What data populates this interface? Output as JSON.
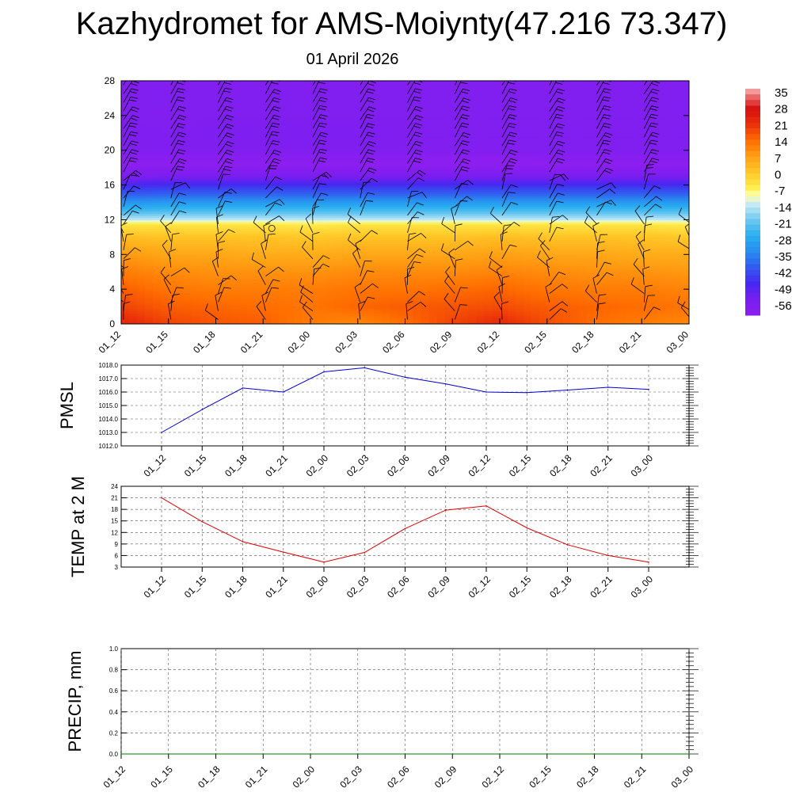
{
  "header": {
    "title": "Kazhydromet for AMS-Moiynty(47.216 73.347)",
    "subtitle": "01 April 2026"
  },
  "chart_data": [
    {
      "type": "heatmap",
      "title": "",
      "xlabel": "",
      "ylabel": "",
      "x_ticks": [
        "01_12",
        "01_15",
        "01_18",
        "01_21",
        "02_00",
        "02_03",
        "02_06",
        "02_09",
        "02_12",
        "02_15",
        "02_18",
        "02_21",
        "03_00"
      ],
      "y_ticks": [
        0,
        4,
        8,
        12,
        16,
        20,
        24,
        28
      ],
      "ylim": [
        0,
        28
      ],
      "colorbar_labels": [
        "35",
        "28",
        "21",
        "14",
        "7",
        "0",
        "-7",
        "-14",
        "-21",
        "-28",
        "-35",
        "-42",
        "-49",
        "-56"
      ],
      "colorbar_range": [
        -63,
        37
      ],
      "y_levels": [
        0,
        2,
        4,
        6,
        8,
        10,
        11.5,
        12,
        13,
        14,
        15,
        16,
        16.8,
        17.6,
        18.4,
        19.2,
        20,
        22,
        24,
        26,
        28
      ],
      "temperature_by_time": [
        [
          24,
          19,
          16,
          12,
          8,
          2,
          -5,
          -14,
          -25,
          -33,
          -42,
          -49,
          -56,
          -60,
          -63,
          -62,
          -59,
          -58,
          -59,
          -59,
          -60
        ],
        [
          19,
          16,
          13,
          10,
          6,
          1,
          -5,
          -14,
          -24,
          -32,
          -41,
          -48,
          -55,
          -60,
          -63,
          -62,
          -59,
          -59,
          -60,
          -59,
          -60
        ],
        [
          17,
          15,
          12,
          9,
          6,
          1,
          -5,
          -14,
          -24,
          -32,
          -41,
          -48,
          -55,
          -60,
          -63,
          -62,
          -59,
          -58,
          -59,
          -59,
          -60
        ],
        [
          16,
          14,
          12,
          9,
          5,
          1,
          -5,
          -14,
          -24,
          -32,
          -41,
          -48,
          -55,
          -60,
          -63,
          -62,
          -59,
          -58,
          -59,
          -59,
          -60
        ],
        [
          12,
          13,
          12,
          9,
          5,
          0,
          -6,
          -14,
          -24,
          -32,
          -41,
          -48,
          -55,
          -60,
          -63,
          -62,
          -59,
          -58,
          -59,
          -59,
          -60
        ],
        [
          10,
          15,
          13,
          10,
          6,
          1,
          -5,
          -14,
          -24,
          -32,
          -41,
          -48,
          -55,
          -60,
          -63,
          -62,
          -59,
          -58,
          -59,
          -59,
          -60
        ],
        [
          14,
          16,
          13,
          10,
          6,
          1,
          -5,
          -14,
          -24,
          -32,
          -41,
          -48,
          -55,
          -60,
          -63,
          -62,
          -59,
          -59,
          -59,
          -59,
          -60
        ],
        [
          19,
          17,
          14,
          10,
          6,
          1,
          -5,
          -14,
          -24,
          -32,
          -41,
          -48,
          -55,
          -60,
          -63,
          -63,
          -60,
          -59,
          -59,
          -59,
          -60
        ],
        [
          23,
          18,
          15,
          11,
          7,
          2,
          -5,
          -14,
          -24,
          -32,
          -41,
          -48,
          -55,
          -60,
          -64,
          -63,
          -60,
          -59,
          -59,
          -59,
          -60
        ],
        [
          18,
          16,
          13,
          10,
          6,
          1,
          -5,
          -14,
          -24,
          -32,
          -41,
          -48,
          -55,
          -60,
          -63,
          -62,
          -59,
          -59,
          -59,
          -59,
          -60
        ],
        [
          14,
          15,
          12,
          9,
          6,
          1,
          -5,
          -14,
          -24,
          -32,
          -41,
          -48,
          -55,
          -60,
          -63,
          -62,
          -59,
          -59,
          -59,
          -59,
          -60
        ],
        [
          12,
          14,
          12,
          9,
          5,
          1,
          -5,
          -14,
          -24,
          -32,
          -41,
          -48,
          -55,
          -60,
          -63,
          -62,
          -59,
          -59,
          -59,
          -59,
          -60
        ],
        [
          10,
          13,
          11,
          8,
          5,
          0,
          -6,
          -14,
          -24,
          -32,
          -41,
          -48,
          -55,
          -60,
          -63,
          -62,
          -59,
          -59,
          -59,
          -59,
          -60
        ]
      ],
      "wind_barbs": "wind barbs at every level and time step"
    },
    {
      "type": "line",
      "ylabel": "PMSL",
      "ylim": [
        1012.0,
        1018.0
      ],
      "y_ticks": [
        "1012.0",
        "1013.0",
        "1014.0",
        "1015.0",
        "1016.0",
        "1017.0",
        "1018.0"
      ],
      "categories": [
        "01_12",
        "01_15",
        "01_18",
        "01_21",
        "02_00",
        "02_03",
        "02_06",
        "02_09",
        "02_12",
        "02_15",
        "02_18",
        "02_21",
        "03_00"
      ],
      "values": [
        1013.0,
        1014.7,
        1016.3,
        1016.0,
        1017.5,
        1017.8,
        1017.1,
        1016.6,
        1016.0,
        1015.95,
        1016.15,
        1016.35,
        1016.2
      ],
      "color": "#0000cc"
    },
    {
      "type": "line",
      "ylabel": "TEMP at 2 M",
      "ylim": [
        3,
        24
      ],
      "y_ticks": [
        "3",
        "6",
        "9",
        "12",
        "15",
        "18",
        "21",
        "24"
      ],
      "categories": [
        "01_12",
        "01_15",
        "01_18",
        "01_21",
        "02_00",
        "02_03",
        "02_06",
        "02_09",
        "02_12",
        "02_15",
        "02_18",
        "02_21",
        "03_00"
      ],
      "values": [
        21.0,
        14.8,
        9.6,
        6.9,
        4.3,
        6.8,
        13.0,
        17.8,
        18.9,
        13.2,
        8.8,
        6.0,
        4.3
      ],
      "color": "#dd0000"
    },
    {
      "type": "line",
      "ylabel": "PRECIP, mm",
      "ylim": [
        0.0,
        1.0
      ],
      "y_ticks": [
        "0.0",
        "0.2",
        "0.4",
        "0.6",
        "0.8",
        "1.0"
      ],
      "categories": [
        "01_12",
        "01_15",
        "01_18",
        "01_21",
        "02_00",
        "02_03",
        "02_06",
        "02_09",
        "02_12",
        "02_15",
        "02_18",
        "02_21",
        "03_00"
      ],
      "values": [
        0,
        0,
        0,
        0,
        0,
        0,
        0,
        0,
        0,
        0,
        0,
        0,
        0
      ],
      "color": "#007700"
    }
  ]
}
